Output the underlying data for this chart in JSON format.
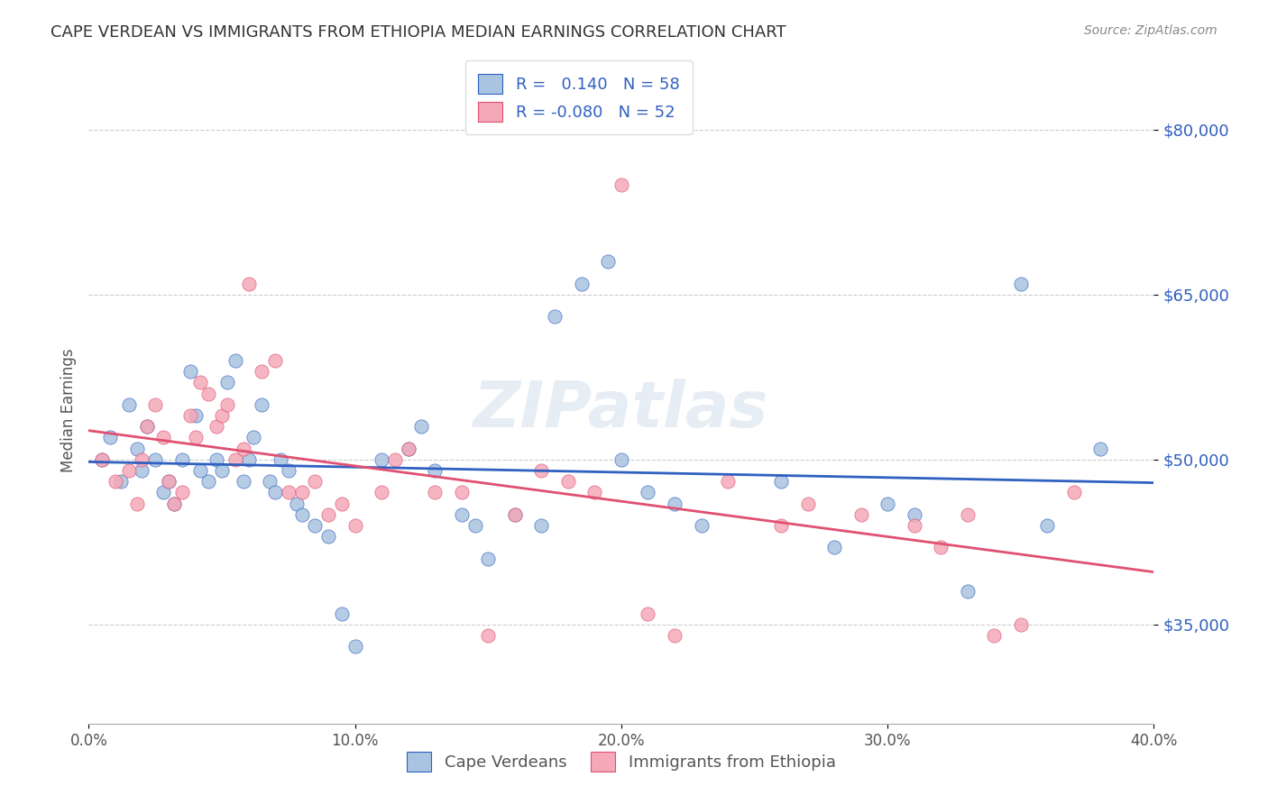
{
  "title": "CAPE VERDEAN VS IMMIGRANTS FROM ETHIOPIA MEDIAN EARNINGS CORRELATION CHART",
  "source": "Source: ZipAtlas.com",
  "xlabel": "",
  "ylabel": "Median Earnings",
  "legend_label1": "Cape Verdeans",
  "legend_label2": "Immigrants from Ethiopia",
  "R1": 0.14,
  "N1": 58,
  "R2": -0.08,
  "N2": 52,
  "xlim": [
    0.0,
    0.4
  ],
  "ylim": [
    26000,
    83000
  ],
  "yticks": [
    35000,
    50000,
    65000,
    80000
  ],
  "ytick_labels": [
    "$35,000",
    "$50,000",
    "$65,000",
    "$80,000"
  ],
  "xticks": [
    0.0,
    0.1,
    0.2,
    0.3,
    0.4
  ],
  "xtick_labels": [
    "0.0%",
    "10.0%",
    "20.0%",
    "30.0%",
    "40.0%"
  ],
  "color1": "#a8c4e0",
  "color2": "#f4a8b8",
  "line_color1": "#3060c0",
  "line_color2": "#e05070",
  "watermark": "ZIPatlas",
  "blue_scatter_x": [
    0.005,
    0.008,
    0.012,
    0.015,
    0.018,
    0.02,
    0.022,
    0.025,
    0.028,
    0.03,
    0.032,
    0.035,
    0.038,
    0.04,
    0.042,
    0.045,
    0.048,
    0.05,
    0.052,
    0.055,
    0.058,
    0.06,
    0.062,
    0.065,
    0.068,
    0.07,
    0.072,
    0.075,
    0.078,
    0.08,
    0.085,
    0.09,
    0.095,
    0.1,
    0.11,
    0.12,
    0.125,
    0.13,
    0.14,
    0.145,
    0.15,
    0.16,
    0.17,
    0.175,
    0.185,
    0.195,
    0.2,
    0.21,
    0.22,
    0.23,
    0.26,
    0.28,
    0.3,
    0.31,
    0.33,
    0.35,
    0.36,
    0.38
  ],
  "blue_scatter_y": [
    50000,
    52000,
    48000,
    55000,
    51000,
    49000,
    53000,
    50000,
    47000,
    48000,
    46000,
    50000,
    58000,
    54000,
    49000,
    48000,
    50000,
    49000,
    57000,
    59000,
    48000,
    50000,
    52000,
    55000,
    48000,
    47000,
    50000,
    49000,
    46000,
    45000,
    44000,
    43000,
    36000,
    33000,
    50000,
    51000,
    53000,
    49000,
    45000,
    44000,
    41000,
    45000,
    44000,
    63000,
    66000,
    68000,
    50000,
    47000,
    46000,
    44000,
    48000,
    42000,
    46000,
    45000,
    38000,
    66000,
    44000,
    51000
  ],
  "pink_scatter_x": [
    0.005,
    0.01,
    0.015,
    0.018,
    0.02,
    0.022,
    0.025,
    0.028,
    0.03,
    0.032,
    0.035,
    0.038,
    0.04,
    0.042,
    0.045,
    0.048,
    0.05,
    0.052,
    0.055,
    0.058,
    0.06,
    0.065,
    0.07,
    0.075,
    0.08,
    0.085,
    0.09,
    0.095,
    0.1,
    0.11,
    0.115,
    0.12,
    0.13,
    0.14,
    0.15,
    0.16,
    0.17,
    0.18,
    0.19,
    0.2,
    0.21,
    0.22,
    0.24,
    0.26,
    0.27,
    0.29,
    0.31,
    0.32,
    0.33,
    0.34,
    0.35,
    0.37
  ],
  "pink_scatter_y": [
    50000,
    48000,
    49000,
    46000,
    50000,
    53000,
    55000,
    52000,
    48000,
    46000,
    47000,
    54000,
    52000,
    57000,
    56000,
    53000,
    54000,
    55000,
    50000,
    51000,
    66000,
    58000,
    59000,
    47000,
    47000,
    48000,
    45000,
    46000,
    44000,
    47000,
    50000,
    51000,
    47000,
    47000,
    34000,
    45000,
    49000,
    48000,
    47000,
    75000,
    36000,
    34000,
    48000,
    44000,
    46000,
    45000,
    44000,
    42000,
    45000,
    34000,
    35000,
    47000
  ]
}
